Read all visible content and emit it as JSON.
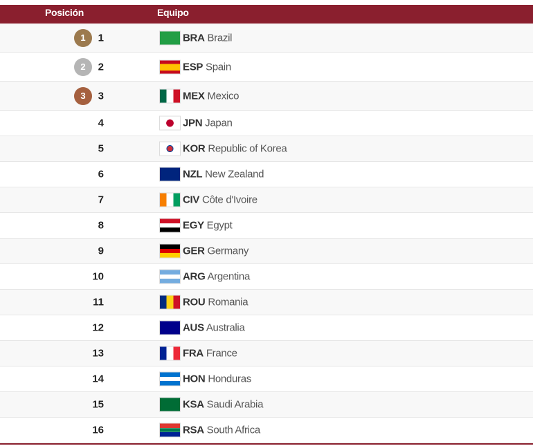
{
  "header": {
    "position": "Posición",
    "team": "Equipo"
  },
  "colors": {
    "header": "#8a1f2e",
    "gold": "#9c7a4e",
    "silver": "#b5b5b5",
    "bronze": "#a5603f"
  },
  "rows": [
    {
      "pos": "1",
      "medal": "1",
      "medal_color": "#9c7a4e",
      "code": "BRA",
      "name": "Brazil",
      "flag": "linear-gradient(#229e45,#229e45)"
    },
    {
      "pos": "2",
      "medal": "2",
      "medal_color": "#b5b5b5",
      "code": "ESP",
      "name": "Spain",
      "flag": "linear-gradient(#c60b1e 25%,#ffc400 25%,#ffc400 75%,#c60b1e 75%)"
    },
    {
      "pos": "3",
      "medal": "3",
      "medal_color": "#a5603f",
      "code": "MEX",
      "name": "Mexico",
      "flag": "linear-gradient(90deg,#006847 33%,#fff 33%,#fff 67%,#ce1126 67%)"
    },
    {
      "pos": "4",
      "code": "JPN",
      "name": "Japan",
      "flag": "radial-gradient(circle,#bc002d 30%,#fff 32%)"
    },
    {
      "pos": "5",
      "code": "KOR",
      "name": "Republic of Korea",
      "flag": "radial-gradient(circle,#cd2e3a 22%,#0047a0 24%,#0047a0 28%,#fff 30%)"
    },
    {
      "pos": "6",
      "code": "NZL",
      "name": "New Zealand",
      "flag": "linear-gradient(#00247d,#00247d)"
    },
    {
      "pos": "7",
      "code": "CIV",
      "name": "Côte d'Ivoire",
      "flag": "linear-gradient(90deg,#f77f00 33%,#fff 33%,#fff 67%,#009e60 67%)"
    },
    {
      "pos": "8",
      "code": "EGY",
      "name": "Egypt",
      "flag": "linear-gradient(#ce1126 33%,#fff 33%,#fff 67%,#000 67%)"
    },
    {
      "pos": "9",
      "code": "GER",
      "name": "Germany",
      "flag": "linear-gradient(#000 33%,#dd0000 33%,#dd0000 67%,#ffce00 67%)"
    },
    {
      "pos": "10",
      "code": "ARG",
      "name": "Argentina",
      "flag": "linear-gradient(#74acdf 33%,#fff 33%,#fff 67%,#74acdf 67%)"
    },
    {
      "pos": "11",
      "code": "ROU",
      "name": "Romania",
      "flag": "linear-gradient(90deg,#002b7f 33%,#fcd116 33%,#fcd116 67%,#ce1126 67%)"
    },
    {
      "pos": "12",
      "code": "AUS",
      "name": "Australia",
      "flag": "linear-gradient(#00008b,#00008b)"
    },
    {
      "pos": "13",
      "code": "FRA",
      "name": "France",
      "flag": "linear-gradient(90deg,#002395 33%,#fff 33%,#fff 67%,#ed2939 67%)"
    },
    {
      "pos": "14",
      "code": "HON",
      "name": "Honduras",
      "flag": "linear-gradient(#0073cf 33%,#fff 33%,#fff 67%,#0073cf 67%)"
    },
    {
      "pos": "15",
      "code": "KSA",
      "name": "Saudi Arabia",
      "flag": "linear-gradient(#006c35,#006c35)"
    },
    {
      "pos": "16",
      "code": "RSA",
      "name": "South Africa",
      "flag": "linear-gradient(#de3831 33%,#fff 33%,#007a4d 38%,#007a4d 62%,#fff 67%,#002395 67%)"
    }
  ]
}
